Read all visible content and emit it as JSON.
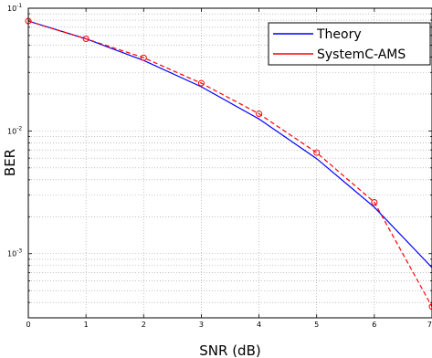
{
  "chart_data": {
    "type": "line",
    "xlabel": "SNR (dB)",
    "ylabel": "BER",
    "xlim": [
      0,
      7
    ],
    "ylim": [
      0.0003,
      0.1
    ],
    "yscale": "log",
    "grid": true,
    "legend_position": "top-right",
    "x_ticks": [
      0,
      1,
      2,
      3,
      4,
      5,
      6,
      7
    ],
    "y_ticks": [
      {
        "base": "10",
        "exponent": "-1",
        "value": 0.1
      },
      {
        "base": "10",
        "exponent": "-2",
        "value": 0.01
      },
      {
        "base": "10",
        "exponent": "-3",
        "value": 0.001
      }
    ],
    "series": [
      {
        "name": "Theory",
        "color": "#0000ff",
        "style": "solid",
        "marker": "none",
        "x": [
          0,
          1,
          2,
          3,
          4,
          5,
          6,
          7
        ],
        "y": [
          0.0786,
          0.0563,
          0.0375,
          0.0229,
          0.0125,
          0.00595,
          0.00239,
          0.00077
        ]
      },
      {
        "name": "SystemC-AMS",
        "color": "#ff0000",
        "style": "dashed",
        "marker": "circle",
        "x": [
          0,
          1,
          2,
          3,
          4,
          5,
          6,
          7
        ],
        "y": [
          0.0786,
          0.0563,
          0.0395,
          0.0245,
          0.0138,
          0.00665,
          0.00262,
          0.00037
        ]
      }
    ]
  }
}
